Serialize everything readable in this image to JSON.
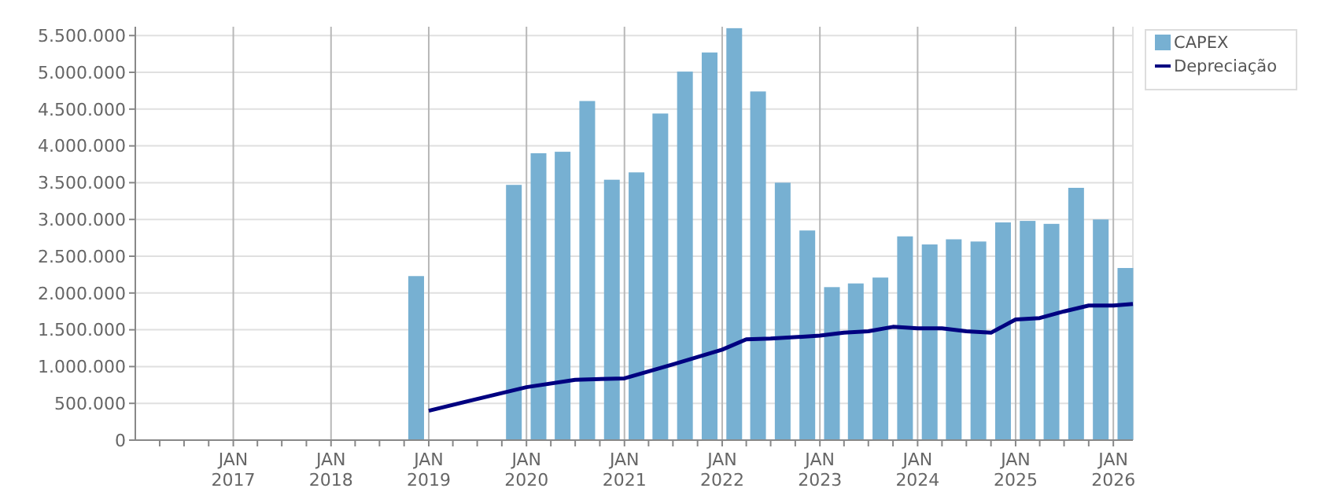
{
  "chart_data": {
    "type": "bar",
    "xlim": [
      "2016-01-01",
      "2026-03-15"
    ],
    "xticks": [
      {
        "value": "2016-04-01",
        "label": null
      },
      {
        "value": "2016-07-01",
        "label": null
      },
      {
        "value": "2016-10-01",
        "label": null
      },
      {
        "value": "2017-01-01",
        "label": "JAN\n2017"
      },
      {
        "value": "2017-04-01",
        "label": null
      },
      {
        "value": "2017-07-01",
        "label": null
      },
      {
        "value": "2017-10-01",
        "label": null
      },
      {
        "value": "2018-01-01",
        "label": "JAN\n2018"
      },
      {
        "value": "2018-04-01",
        "label": null
      },
      {
        "value": "2018-07-01",
        "label": null
      },
      {
        "value": "2018-10-01",
        "label": null
      },
      {
        "value": "2019-01-01",
        "label": "JAN\n2019"
      },
      {
        "value": "2019-04-01",
        "label": null
      },
      {
        "value": "2019-07-01",
        "label": null
      },
      {
        "value": "2019-10-01",
        "label": null
      },
      {
        "value": "2020-01-01",
        "label": "JAN\n2020"
      },
      {
        "value": "2020-04-01",
        "label": null
      },
      {
        "value": "2020-07-01",
        "label": null
      },
      {
        "value": "2020-10-01",
        "label": null
      },
      {
        "value": "2021-01-01",
        "label": "JAN\n2021"
      },
      {
        "value": "2021-04-01",
        "label": null
      },
      {
        "value": "2021-07-01",
        "label": null
      },
      {
        "value": "2021-10-01",
        "label": null
      },
      {
        "value": "2022-01-01",
        "label": "JAN\n2022"
      },
      {
        "value": "2022-04-01",
        "label": null
      },
      {
        "value": "2022-07-01",
        "label": null
      },
      {
        "value": "2022-10-01",
        "label": null
      },
      {
        "value": "2023-01-01",
        "label": "JAN\n2023"
      },
      {
        "value": "2023-04-01",
        "label": null
      },
      {
        "value": "2023-07-01",
        "label": null
      },
      {
        "value": "2023-10-01",
        "label": null
      },
      {
        "value": "2024-01-01",
        "label": "JAN\n2024"
      },
      {
        "value": "2024-04-01",
        "label": null
      },
      {
        "value": "2024-07-01",
        "label": null
      },
      {
        "value": "2024-10-01",
        "label": null
      },
      {
        "value": "2025-01-01",
        "label": "JAN\n2025"
      },
      {
        "value": "2025-04-01",
        "label": null
      },
      {
        "value": "2025-07-01",
        "label": null
      },
      {
        "value": "2025-10-01",
        "label": null
      },
      {
        "value": "2026-01-01",
        "label": "JAN\n2026"
      }
    ],
    "ylim": [
      0,
      5620000
    ],
    "yticks": [
      {
        "value": 0,
        "label": "0"
      },
      {
        "value": 500000,
        "label": "500.000"
      },
      {
        "value": 1000000,
        "label": "1.000.000"
      },
      {
        "value": 1500000,
        "label": "1.500.000"
      },
      {
        "value": 2000000,
        "label": "2.000.000"
      },
      {
        "value": 2500000,
        "label": "2.500.000"
      },
      {
        "value": 3000000,
        "label": "3.000.000"
      },
      {
        "value": 3500000,
        "label": "3.500.000"
      },
      {
        "value": 4000000,
        "label": "4.000.000"
      },
      {
        "value": 4500000,
        "label": "4.500.000"
      },
      {
        "value": 5000000,
        "label": "5.000.000"
      },
      {
        "value": 5500000,
        "label": "5.500.000"
      }
    ],
    "grid": true,
    "legend": "top right",
    "series": [
      {
        "name": "CAPEX",
        "color": "#77b0d2",
        "x": [
          "2018-11-15",
          "2019-11-15",
          "2020-02-15",
          "2020-05-15",
          "2020-08-15",
          "2020-11-15",
          "2021-02-15",
          "2021-05-15",
          "2021-08-15",
          "2021-11-15",
          "2022-02-15",
          "2022-05-15",
          "2022-08-15",
          "2022-11-15",
          "2023-02-15",
          "2023-05-15",
          "2023-08-15",
          "2023-11-15",
          "2024-02-15",
          "2024-05-15",
          "2024-08-15",
          "2024-11-15",
          "2025-02-15",
          "2025-05-15",
          "2025-08-15",
          "2025-11-15",
          "2026-02-15"
        ],
        "values": [
          2230000,
          3470000,
          3900000,
          3920000,
          4610000,
          3540000,
          3640000,
          4440000,
          5010000,
          5270000,
          5600000,
          4740000,
          3500000,
          2850000,
          2080000,
          2130000,
          2210000,
          2770000,
          2660000,
          2730000,
          2700000,
          2960000,
          2980000,
          2940000,
          3430000,
          3000000,
          2340000
        ]
      },
      {
        "name": "Depreciação",
        "type": "line",
        "color": "#000080",
        "x": [
          "2019-01-01",
          "2019-07-01",
          "2020-01-01",
          "2020-07-01",
          "2021-01-01",
          "2021-07-01",
          "2022-01-01",
          "2022-04-01",
          "2022-07-01",
          "2023-01-01",
          "2023-04-01",
          "2023-07-01",
          "2023-10-01",
          "2024-01-01",
          "2024-04-01",
          "2024-07-01",
          "2024-10-01",
          "2025-01-01",
          "2025-04-01",
          "2025-07-01",
          "2025-10-01",
          "2026-01-01",
          "2026-03-15"
        ],
        "values": [
          400000,
          560000,
          720000,
          820000,
          840000,
          1030000,
          1230000,
          1370000,
          1380000,
          1420000,
          1460000,
          1480000,
          1540000,
          1520000,
          1520000,
          1480000,
          1460000,
          1640000,
          1660000,
          1750000,
          1830000,
          1830000,
          1850000
        ]
      }
    ]
  }
}
